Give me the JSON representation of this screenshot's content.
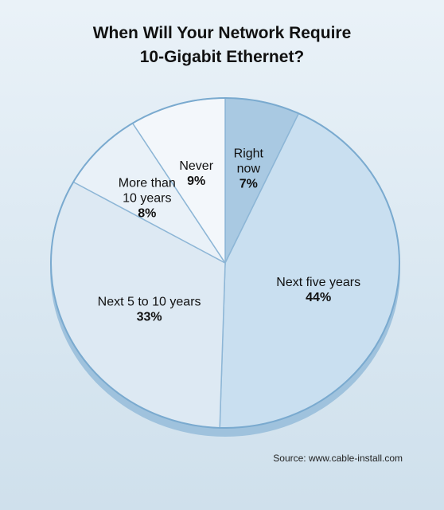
{
  "chart_data": {
    "type": "pie",
    "title": [
      "When Will Your Network Require",
      "10-Gigabit Ethernet?"
    ],
    "source": "Source: www.cable-install.com",
    "slices": [
      {
        "label": [
          "Right",
          "now"
        ],
        "value": 7,
        "display": "7%",
        "color": "#a9c9e2"
      },
      {
        "label": [
          "Next five years"
        ],
        "value": 44,
        "display": "44%",
        "color": "#c9dff0"
      },
      {
        "label": [
          "Next 5 to 10 years"
        ],
        "value": 33,
        "display": "33%",
        "color": "#dde9f3"
      },
      {
        "label": [
          "More than",
          "10 years"
        ],
        "value": 8,
        "display": "8%",
        "color": "#e9f1f8"
      },
      {
        "label": [
          "Never"
        ],
        "value": 9,
        "display": "9%",
        "color": "#f3f7fb"
      }
    ]
  }
}
